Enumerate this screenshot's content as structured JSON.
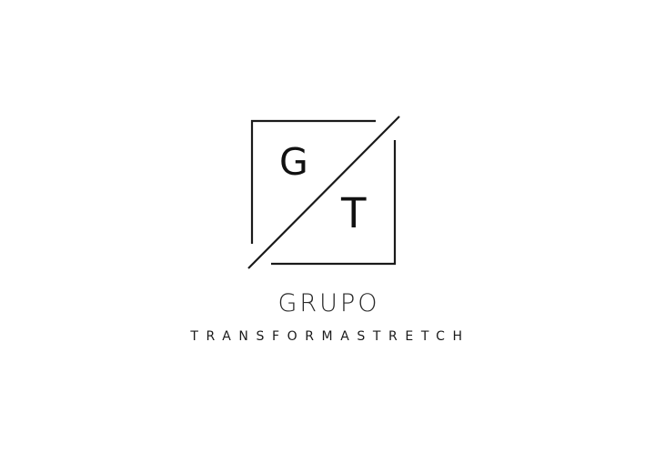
{
  "logo": {
    "monogram_top": "G",
    "monogram_bottom": "T",
    "name_primary": "GRUPO",
    "name_secondary": "TRANSFORMASTRETCH",
    "ink_color": "#1a1a1a",
    "background_color": "#ffffff"
  }
}
